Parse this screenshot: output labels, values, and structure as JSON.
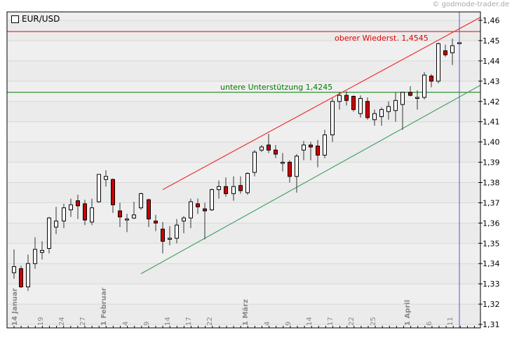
{
  "copyright": "© godmode-trader.de",
  "title": "EUR/USD",
  "colors": {
    "background_band_a": "#efefef",
    "background_band_b": "#ebebeb",
    "gridline": "#d8d8d8",
    "resistance": "#e00000",
    "support": "#007a00",
    "upper_channel": "#ee3333",
    "lower_channel": "#4aa36a",
    "cursor_line": "#5555dd",
    "bear_candle": "#cc0000",
    "bull_candle": "#ffffff"
  },
  "annotations": {
    "resistance_label": "oberer Wiederst. 1,4545",
    "support_label": "untere Unterstützung 1,4245"
  },
  "chart_data": {
    "type": "candlestick",
    "title": "EUR/USD",
    "xlabel": "",
    "ylabel": "",
    "ylim": [
      1.31,
      1.46
    ],
    "grid": true,
    "y_ticks": [
      "1,46",
      "1,45",
      "1,44",
      "1,43",
      "1,42",
      "1,41",
      "1,40",
      "1,39",
      "1,38",
      "1,37",
      "1,36",
      "1,35",
      "1,34",
      "1,33",
      "1,32",
      "1,31"
    ],
    "x_ticks": [
      {
        "label": "14 Januar",
        "bold": true,
        "x": 20
      },
      {
        "label": "19",
        "bold": false,
        "x": 57
      },
      {
        "label": "24",
        "bold": false,
        "x": 87
      },
      {
        "label": "27",
        "bold": false,
        "x": 117
      },
      {
        "label": "1 Februar",
        "bold": true,
        "x": 147
      },
      {
        "label": "4",
        "bold": false,
        "x": 178
      },
      {
        "label": "9",
        "bold": false,
        "x": 208
      },
      {
        "label": "14",
        "bold": false,
        "x": 238
      },
      {
        "label": "17",
        "bold": false,
        "x": 268
      },
      {
        "label": "22",
        "bold": false,
        "x": 298
      },
      {
        "label": "1 März",
        "bold": true,
        "x": 349
      },
      {
        "label": "4",
        "bold": false,
        "x": 380
      },
      {
        "label": "9",
        "bold": false,
        "x": 410
      },
      {
        "label": "14",
        "bold": false,
        "x": 440
      },
      {
        "label": "17",
        "bold": false,
        "x": 470
      },
      {
        "label": "22",
        "bold": false,
        "x": 500
      },
      {
        "label": "25",
        "bold": false,
        "x": 531
      },
      {
        "label": "1 April",
        "bold": true,
        "x": 580
      },
      {
        "label": "6",
        "bold": false,
        "x": 611
      },
      {
        "label": "11",
        "bold": false,
        "x": 641
      }
    ],
    "horizontal_lines": [
      {
        "name": "oberer Wiederst.",
        "value": 1.4545
      },
      {
        "name": "untere Unterstützung",
        "value": 1.4245
      }
    ],
    "trend_lines": [
      {
        "name": "upper channel",
        "from": {
          "x": 232,
          "y": 1.3765
        },
        "to": {
          "x": 685,
          "y": 1.4615
        }
      },
      {
        "name": "lower channel",
        "from": {
          "x": 201,
          "y": 1.335
        },
        "to": {
          "x": 685,
          "y": 1.428
        }
      }
    ],
    "cursor_x": 655,
    "candles": [
      {
        "x": 20,
        "o": 1.3355,
        "h": 1.347,
        "l": 1.3325,
        "c": 1.3385
      },
      {
        "x": 30,
        "o": 1.3375,
        "h": 1.339,
        "l": 1.328,
        "c": 1.3285
      },
      {
        "x": 40,
        "o": 1.3285,
        "h": 1.3445,
        "l": 1.3265,
        "c": 1.34
      },
      {
        "x": 50,
        "o": 1.34,
        "h": 1.353,
        "l": 1.3375,
        "c": 1.347
      },
      {
        "x": 60,
        "o": 1.3455,
        "h": 1.351,
        "l": 1.342,
        "c": 1.3465
      },
      {
        "x": 70,
        "o": 1.3475,
        "h": 1.363,
        "l": 1.345,
        "c": 1.3625
      },
      {
        "x": 80,
        "o": 1.358,
        "h": 1.368,
        "l": 1.3545,
        "c": 1.361
      },
      {
        "x": 91,
        "o": 1.361,
        "h": 1.3695,
        "l": 1.3575,
        "c": 1.3675
      },
      {
        "x": 101,
        "o": 1.3665,
        "h": 1.372,
        "l": 1.363,
        "c": 1.369
      },
      {
        "x": 111,
        "o": 1.371,
        "h": 1.374,
        "l": 1.362,
        "c": 1.3685
      },
      {
        "x": 121,
        "o": 1.3695,
        "h": 1.3715,
        "l": 1.359,
        "c": 1.3615
      },
      {
        "x": 131,
        "o": 1.3605,
        "h": 1.372,
        "l": 1.359,
        "c": 1.3675
      },
      {
        "x": 141,
        "o": 1.3705,
        "h": 1.384,
        "l": 1.37,
        "c": 1.384
      },
      {
        "x": 151,
        "o": 1.3815,
        "h": 1.386,
        "l": 1.378,
        "c": 1.383
      },
      {
        "x": 161,
        "o": 1.3815,
        "h": 1.382,
        "l": 1.365,
        "c": 1.369
      },
      {
        "x": 171,
        "o": 1.366,
        "h": 1.37,
        "l": 1.358,
        "c": 1.363
      },
      {
        "x": 181,
        "o": 1.362,
        "h": 1.3645,
        "l": 1.3555,
        "c": 1.362
      },
      {
        "x": 191,
        "o": 1.3625,
        "h": 1.3705,
        "l": 1.362,
        "c": 1.364
      },
      {
        "x": 201,
        "o": 1.3675,
        "h": 1.375,
        "l": 1.3665,
        "c": 1.3745
      },
      {
        "x": 212,
        "o": 1.3715,
        "h": 1.372,
        "l": 1.358,
        "c": 1.362
      },
      {
        "x": 222,
        "o": 1.361,
        "h": 1.364,
        "l": 1.356,
        "c": 1.36
      },
      {
        "x": 232,
        "o": 1.357,
        "h": 1.3605,
        "l": 1.345,
        "c": 1.351
      },
      {
        "x": 242,
        "o": 1.3525,
        "h": 1.3585,
        "l": 1.349,
        "c": 1.3525
      },
      {
        "x": 252,
        "o": 1.3525,
        "h": 1.362,
        "l": 1.35,
        "c": 1.359
      },
      {
        "x": 262,
        "o": 1.361,
        "h": 1.3635,
        "l": 1.355,
        "c": 1.3625
      },
      {
        "x": 272,
        "o": 1.3625,
        "h": 1.372,
        "l": 1.3575,
        "c": 1.3705
      },
      {
        "x": 282,
        "o": 1.3695,
        "h": 1.372,
        "l": 1.3645,
        "c": 1.368
      },
      {
        "x": 292,
        "o": 1.367,
        "h": 1.37,
        "l": 1.352,
        "c": 1.366
      },
      {
        "x": 302,
        "o": 1.3665,
        "h": 1.377,
        "l": 1.366,
        "c": 1.3765
      },
      {
        "x": 312,
        "o": 1.3765,
        "h": 1.381,
        "l": 1.372,
        "c": 1.378
      },
      {
        "x": 322,
        "o": 1.378,
        "h": 1.3825,
        "l": 1.373,
        "c": 1.3745
      },
      {
        "x": 333,
        "o": 1.3745,
        "h": 1.383,
        "l": 1.371,
        "c": 1.378
      },
      {
        "x": 343,
        "o": 1.3785,
        "h": 1.383,
        "l": 1.3745,
        "c": 1.376
      },
      {
        "x": 353,
        "o": 1.375,
        "h": 1.385,
        "l": 1.374,
        "c": 1.3845
      },
      {
        "x": 363,
        "o": 1.385,
        "h": 1.396,
        "l": 1.383,
        "c": 1.395
      },
      {
        "x": 373,
        "o": 1.396,
        "h": 1.3985,
        "l": 1.395,
        "c": 1.3975
      },
      {
        "x": 383,
        "o": 1.3985,
        "h": 1.404,
        "l": 1.3945,
        "c": 1.396
      },
      {
        "x": 393,
        "o": 1.396,
        "h": 1.3985,
        "l": 1.392,
        "c": 1.394
      },
      {
        "x": 403,
        "o": 1.39,
        "h": 1.3945,
        "l": 1.3855,
        "c": 1.39
      },
      {
        "x": 413,
        "o": 1.39,
        "h": 1.391,
        "l": 1.38,
        "c": 1.383
      },
      {
        "x": 423,
        "o": 1.383,
        "h": 1.394,
        "l": 1.375,
        "c": 1.393
      },
      {
        "x": 433,
        "o": 1.396,
        "h": 1.4005,
        "l": 1.391,
        "c": 1.3985
      },
      {
        "x": 443,
        "o": 1.3985,
        "h": 1.4,
        "l": 1.391,
        "c": 1.3975
      },
      {
        "x": 453,
        "o": 1.398,
        "h": 1.401,
        "l": 1.3875,
        "c": 1.3935
      },
      {
        "x": 463,
        "o": 1.3935,
        "h": 1.406,
        "l": 1.392,
        "c": 1.4035
      },
      {
        "x": 474,
        "o": 1.4035,
        "h": 1.4215,
        "l": 1.4,
        "c": 1.42
      },
      {
        "x": 484,
        "o": 1.42,
        "h": 1.4245,
        "l": 1.416,
        "c": 1.423
      },
      {
        "x": 494,
        "o": 1.423,
        "h": 1.425,
        "l": 1.418,
        "c": 1.4205
      },
      {
        "x": 504,
        "o": 1.4225,
        "h": 1.423,
        "l": 1.415,
        "c": 1.416
      },
      {
        "x": 514,
        "o": 1.414,
        "h": 1.423,
        "l": 1.412,
        "c": 1.4215
      },
      {
        "x": 524,
        "o": 1.42,
        "h": 1.422,
        "l": 1.411,
        "c": 1.412
      },
      {
        "x": 534,
        "o": 1.411,
        "h": 1.416,
        "l": 1.408,
        "c": 1.414
      },
      {
        "x": 544,
        "o": 1.4125,
        "h": 1.417,
        "l": 1.408,
        "c": 1.416
      },
      {
        "x": 554,
        "o": 1.415,
        "h": 1.42,
        "l": 1.411,
        "c": 1.4175
      },
      {
        "x": 564,
        "o": 1.4155,
        "h": 1.4245,
        "l": 1.41,
        "c": 1.4205
      },
      {
        "x": 574,
        "o": 1.4185,
        "h": 1.4245,
        "l": 1.406,
        "c": 1.4245
      },
      {
        "x": 585,
        "o": 1.4245,
        "h": 1.4275,
        "l": 1.4225,
        "c": 1.423
      },
      {
        "x": 595,
        "o": 1.422,
        "h": 1.4255,
        "l": 1.416,
        "c": 1.422
      },
      {
        "x": 605,
        "o": 1.422,
        "h": 1.4345,
        "l": 1.421,
        "c": 1.433
      },
      {
        "x": 615,
        "o": 1.4325,
        "h": 1.4335,
        "l": 1.427,
        "c": 1.43
      },
      {
        "x": 625,
        "o": 1.43,
        "h": 1.449,
        "l": 1.429,
        "c": 1.4485
      },
      {
        "x": 635,
        "o": 1.445,
        "h": 1.448,
        "l": 1.442,
        "c": 1.443
      },
      {
        "x": 645,
        "o": 1.444,
        "h": 1.451,
        "l": 1.438,
        "c": 1.4475
      },
      {
        "x": 655,
        "o": 1.4485,
        "h": 1.4495,
        "l": 1.4475,
        "c": 1.449
      }
    ]
  }
}
